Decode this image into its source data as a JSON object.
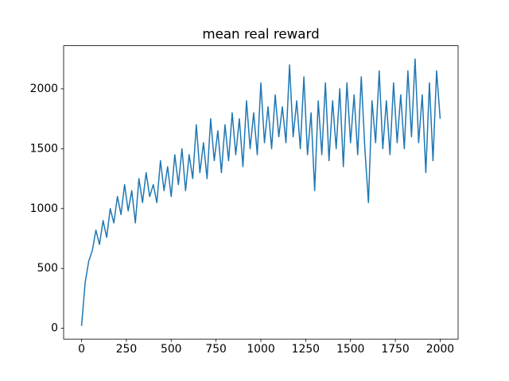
{
  "chart_data": {
    "type": "line",
    "title": "mean real reward",
    "x": [
      0,
      20,
      40,
      60,
      80,
      100,
      120,
      140,
      160,
      180,
      200,
      220,
      240,
      260,
      280,
      300,
      320,
      340,
      360,
      380,
      400,
      420,
      440,
      460,
      480,
      500,
      520,
      540,
      560,
      580,
      600,
      620,
      640,
      660,
      680,
      700,
      720,
      740,
      760,
      780,
      800,
      820,
      840,
      860,
      880,
      900,
      920,
      940,
      960,
      980,
      1000,
      1020,
      1040,
      1060,
      1080,
      1100,
      1120,
      1140,
      1160,
      1180,
      1200,
      1220,
      1240,
      1260,
      1280,
      1300,
      1320,
      1340,
      1360,
      1380,
      1400,
      1420,
      1440,
      1460,
      1480,
      1500,
      1520,
      1540,
      1560,
      1580,
      1600,
      1620,
      1640,
      1660,
      1680,
      1700,
      1720,
      1740,
      1760,
      1780,
      1800,
      1820,
      1840,
      1860,
      1880,
      1900,
      1920,
      1940,
      1960,
      1980,
      2000
    ],
    "values": [
      20,
      380,
      560,
      650,
      820,
      700,
      900,
      760,
      1000,
      880,
      1100,
      950,
      1200,
      980,
      1150,
      880,
      1250,
      1050,
      1300,
      1100,
      1200,
      1050,
      1400,
      1150,
      1350,
      1100,
      1450,
      1200,
      1500,
      1150,
      1450,
      1250,
      1700,
      1300,
      1550,
      1250,
      1750,
      1400,
      1650,
      1300,
      1700,
      1400,
      1800,
      1450,
      1750,
      1350,
      1900,
      1500,
      1800,
      1450,
      2050,
      1550,
      1850,
      1500,
      1950,
      1600,
      1850,
      1550,
      2200,
      1600,
      1900,
      1500,
      2100,
      1450,
      1800,
      1150,
      1900,
      1450,
      2050,
      1400,
      1900,
      1500,
      2000,
      1350,
      2050,
      1550,
      1950,
      1450,
      2100,
      1500,
      1050,
      1900,
      1550,
      2150,
      1500,
      1900,
      1450,
      2050,
      1550,
      1950,
      1500,
      2150,
      1600,
      2250,
      1550,
      1950,
      1300,
      2050,
      1400,
      2150,
      1750
    ],
    "color": "#1f77b4",
    "xlim": [
      -100,
      2100
    ],
    "xticks": [
      0,
      250,
      500,
      750,
      1000,
      1250,
      1500,
      1750,
      2000
    ],
    "ylim": [
      -90,
      2360
    ],
    "yticks": [
      0,
      500,
      1000,
      1500,
      2000
    ]
  }
}
